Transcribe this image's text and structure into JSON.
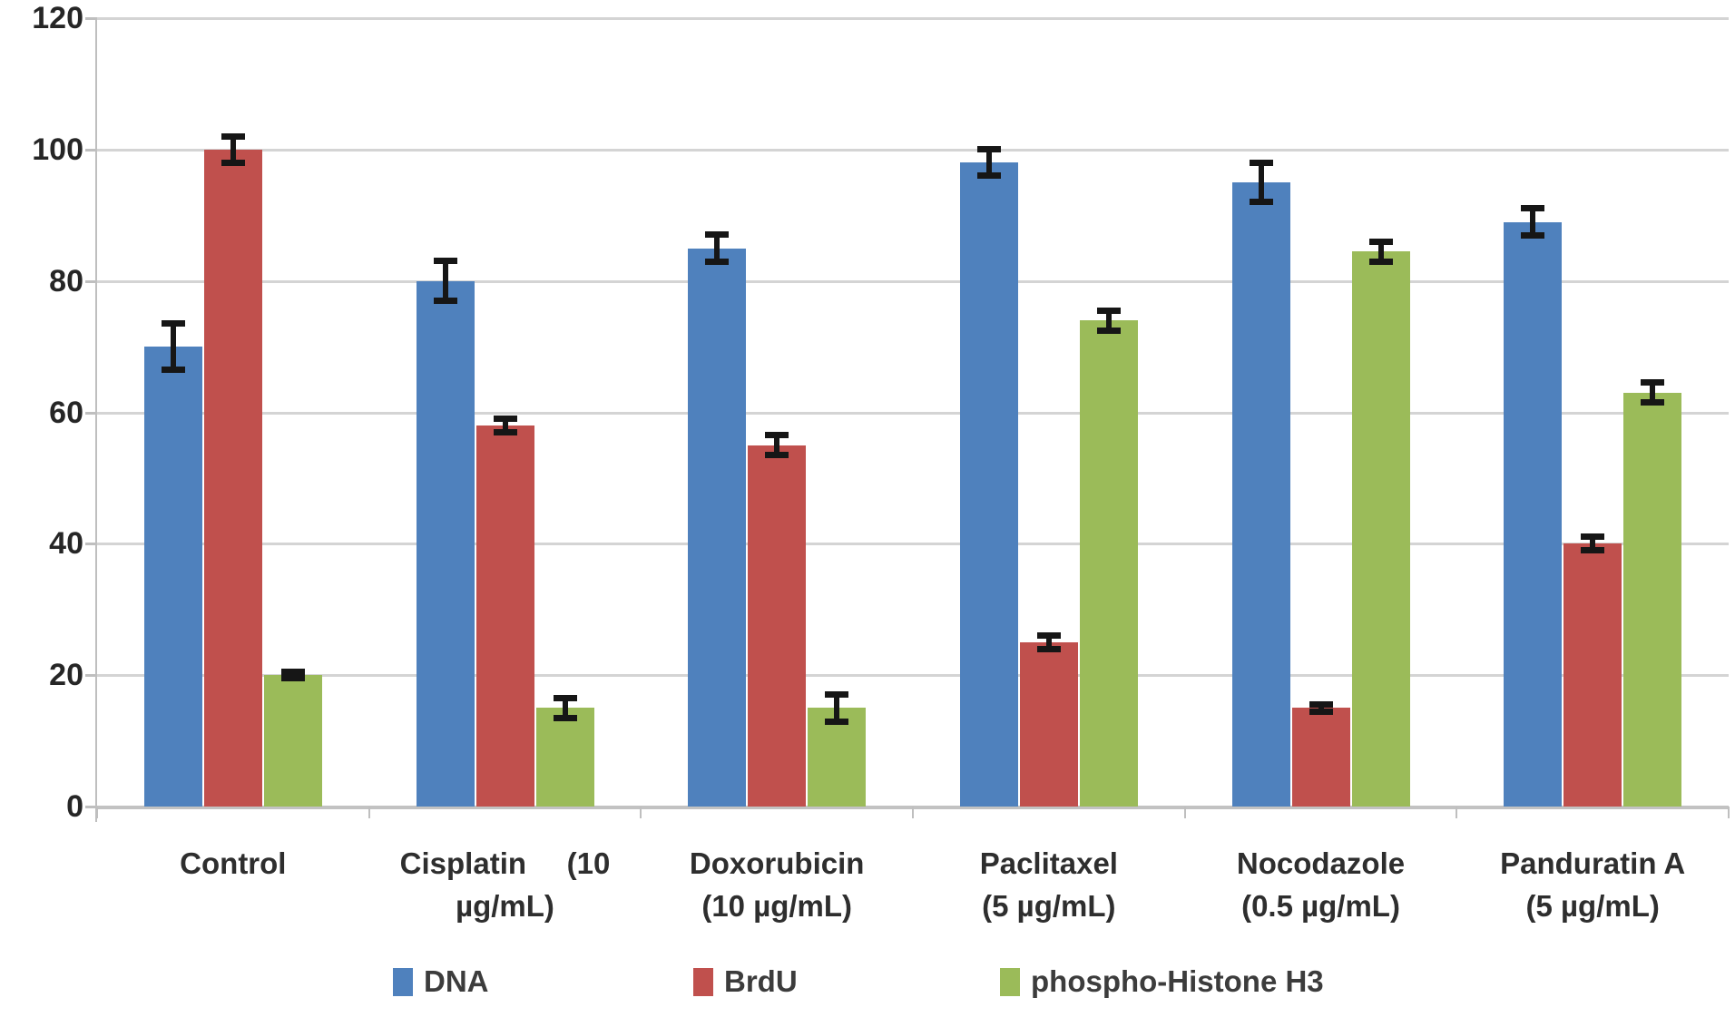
{
  "chart_data": {
    "type": "bar",
    "title": "",
    "xlabel": "",
    "ylabel": "",
    "categories": [
      "Control",
      "Cisplatin (10 µg/mL)",
      "Doxorubicin (10 µg/mL)",
      "Paclitaxel (5 µg/mL)",
      "Nocodazole (0.5 µg/mL)",
      "Panduratin A (5 µg/mL)"
    ],
    "category_label_lines": [
      [
        "Control"
      ],
      [
        [
          "Cisplatin",
          "(10"
        ],
        "µg/mL)"
      ],
      [
        "Doxorubicin",
        "(10 µg/mL)"
      ],
      [
        "Paclitaxel",
        "(5 µg/mL)"
      ],
      [
        "Nocodazole",
        "(0.5 µg/mL)"
      ],
      [
        "Panduratin A",
        "(5 µg/mL)"
      ]
    ],
    "series": [
      {
        "name": "DNA",
        "color": "#4F81BD",
        "values": [
          70,
          80,
          85,
          98,
          95,
          89
        ],
        "errors": [
          4,
          3.5,
          2.5,
          2.5,
          3.5,
          2.5
        ]
      },
      {
        "name": "BrdU",
        "color": "#C0504D",
        "values": [
          100,
          58,
          55,
          25,
          15,
          40
        ],
        "errors": [
          2.5,
          1.5,
          2,
          1.5,
          1,
          1.5
        ]
      },
      {
        "name": "phospho-Histone H3",
        "color": "#9BBB59",
        "values": [
          20,
          15,
          15,
          74,
          84.5,
          63
        ],
        "errors": [
          1,
          2,
          2.5,
          2,
          2,
          2
        ]
      }
    ],
    "ylim": [
      0,
      120
    ],
    "yticks": [
      0,
      20,
      40,
      60,
      80,
      100,
      120
    ],
    "ytick_labels": [
      "0",
      "20",
      "40",
      "60",
      "80",
      "100",
      "120"
    ],
    "grid": true,
    "error_bars": true,
    "legend_position": "bottom"
  },
  "legend": {
    "items": [
      {
        "label": "DNA",
        "color": "#4F81BD"
      },
      {
        "label": "BrdU",
        "color": "#C0504D"
      },
      {
        "label": "phospho-Histone H3",
        "color": "#9BBB59"
      }
    ]
  },
  "colors": {
    "background": "#ffffff",
    "gridline": "#d4d4d4",
    "axis": "#bfbfbf",
    "error_bar": "#161616",
    "tick_text": "#262626"
  }
}
